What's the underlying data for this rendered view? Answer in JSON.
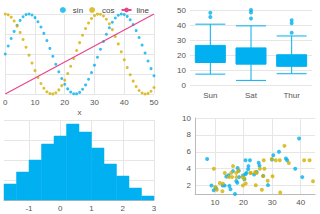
{
  "chart_data": [
    {
      "type": "line",
      "xlabel": "x",
      "legend": "upper right",
      "grid": true,
      "tick_labels": "x",
      "xlim": [
        0,
        50
      ],
      "xticks": [
        0,
        10,
        20,
        30,
        40,
        50
      ],
      "ylim": [
        -1,
        1
      ],
      "yticks": [
        -1,
        -0.5,
        0,
        0.5,
        1
      ],
      "x": [
        0,
        1,
        2,
        3,
        4,
        5,
        6,
        7,
        8,
        9,
        10,
        11,
        12,
        13,
        14,
        15,
        16,
        17,
        18,
        19,
        20,
        21,
        22,
        23,
        24,
        25,
        26,
        27,
        28,
        29,
        30,
        31,
        32,
        33,
        34,
        35,
        36,
        37,
        38,
        39,
        40,
        41,
        42,
        43,
        44,
        45,
        46,
        47,
        48,
        49,
        50
      ],
      "series": [
        {
          "name": "sin",
          "type": "scatter",
          "marker": "circle",
          "color": "#00b0f0",
          "values": [
            0,
            0.199,
            0.389,
            0.565,
            0.717,
            0.841,
            0.932,
            0.985,
            1.0,
            0.974,
            0.909,
            0.808,
            0.675,
            0.516,
            0.335,
            0.141,
            -0.058,
            -0.256,
            -0.443,
            -0.612,
            -0.757,
            -0.872,
            -0.952,
            -0.994,
            -0.996,
            -0.959,
            -0.883,
            -0.773,
            -0.631,
            -0.465,
            -0.279,
            -0.083,
            0.117,
            0.312,
            0.494,
            0.657,
            0.794,
            0.899,
            0.968,
            0.999,
            0.989,
            0.941,
            0.855,
            0.734,
            0.585,
            0.412,
            0.223,
            0.025,
            -0.174,
            -0.366,
            -0.544
          ]
        },
        {
          "name": "cos",
          "type": "scatter",
          "marker": "circle",
          "color": "#d4af00",
          "values": [
            1,
            0.98,
            0.921,
            0.825,
            0.697,
            0.54,
            0.362,
            0.17,
            -0.029,
            -0.227,
            -0.416,
            -0.589,
            -0.737,
            -0.857,
            -0.942,
            -0.99,
            -0.998,
            -0.967,
            -0.897,
            -0.791,
            -0.654,
            -0.49,
            -0.307,
            -0.112,
            0.087,
            0.284,
            0.469,
            0.635,
            0.776,
            0.886,
            0.96,
            0.997,
            0.994,
            0.951,
            0.869,
            0.754,
            0.609,
            0.439,
            0.252,
            0.054,
            -0.146,
            -0.339,
            -0.519,
            -0.678,
            -0.811,
            -0.911,
            -0.975,
            -0.999,
            -0.984,
            -0.93,
            -0.839
          ]
        },
        {
          "name": "line",
          "type": "line",
          "line_style": "solid",
          "color": "#e8458b",
          "x": [
            0,
            50
          ],
          "values": [
            -1,
            1
          ]
        }
      ]
    },
    {
      "type": "box",
      "grid": true,
      "color": "#00b0f0",
      "categories": [
        "Sun",
        "Sat",
        "Thur"
      ],
      "ylim": [
        0,
        50
      ],
      "yticks": [
        0,
        10,
        20,
        30,
        40,
        50
      ],
      "values": [
        [
          7.25,
          14.99,
          19.63,
          26.4,
          40.55
        ],
        [
          3.07,
          13.9,
          18.24,
          24.74,
          39.42
        ],
        [
          7.51,
          12.44,
          16.2,
          20.16,
          32.68
        ]
      ],
      "outliers": [
        [
          45.35,
          48.17
        ],
        [
          44.3,
          48.27,
          50
        ],
        [
          34.83,
          41.19,
          43.11
        ]
      ]
    },
    {
      "type": "histogram",
      "grid": true,
      "tick_labels": "x",
      "color": "#00b0f0",
      "bins": [
        -1.8,
        -1.4,
        -1.0,
        -0.6,
        -0.2,
        0.2,
        0.6,
        1.0,
        1.4,
        1.8,
        2.2,
        2.6,
        3.0
      ],
      "counts": [
        4,
        7,
        10,
        14,
        16,
        19,
        17,
        13,
        9,
        6,
        3,
        1
      ],
      "xlim": [
        -1.8,
        3
      ],
      "xticks": [
        -1,
        0,
        1,
        2,
        3
      ],
      "ylim": [
        0,
        20
      ],
      "yticks": [
        0,
        5,
        10,
        15,
        20
      ]
    },
    {
      "type": "scatter",
      "grid": true,
      "xlim": [
        3,
        45
      ],
      "xticks": [
        10,
        20,
        30,
        40
      ],
      "ylim": [
        1,
        10
      ],
      "yticks": [
        2,
        4,
        6,
        8,
        10
      ],
      "series": [
        {
          "color": "#00b0f0",
          "marker": "circle",
          "x": [
            16.99,
            10.34,
            21.01,
            23.68,
            24.59,
            25.29,
            8.77,
            26.88,
            15.04,
            14.78,
            10.27,
            35.26,
            15.42,
            18.43,
            21.58,
            16.29,
            17.46,
            13.94,
            9.55,
            20.65,
            17.92,
            20.29,
            39.42,
            19.82,
            17.81,
            13.37,
            12.69,
            21.7,
            30.4,
            18.29,
            22.23,
            32.4,
            28.55,
            40.55,
            20.69,
            34.81,
            25.56,
            7.25,
            38.07,
            29.93
          ],
          "values": [
            1.01,
            1.66,
            3.5,
            3.31,
            3.61,
            4.71,
            2,
            3.12,
            1.96,
            3.23,
            1.71,
            5,
            1.57,
            3,
            3.92,
            3.71,
            2.54,
            3.06,
            1.45,
            3.35,
            4.08,
            2.75,
            7.58,
            3.18,
            2.34,
            2,
            2,
            4.3,
            5.6,
            3.76,
            5,
            6,
            2.05,
            3,
            5,
            5.2,
            4.34,
            5.15,
            4,
            5.07
          ]
        },
        {
          "color": "#d4af00",
          "marker": "circle",
          "x": [
            19.65,
            20.76,
            24.06,
            12.6,
            11.69,
            19.77,
            29.85,
            32.83,
            44.3,
            22.42,
            27.05,
            16.32,
            14.83,
            26.41,
            35.83,
            18.24,
            12.76,
            30.14,
            15.98,
            25.71,
            31.27,
            26.86,
            24.52,
            10.07,
            34.3,
            17.51,
            28.44,
            20.27,
            13.42,
            43.11,
            10.65,
            15.69,
            22.49,
            9.6,
            24.27,
            41.19,
            32.68,
            17.47,
            27.28
          ],
          "values": [
            3,
            2.24,
            3.6,
            1.32,
            2.31,
            2,
            5.14,
            1.17,
            2.5,
            3.48,
            5,
            4.3,
            3.02,
            1.5,
            4.67,
            3.76,
            2.23,
            3.09,
            3,
            4,
            5,
            3.14,
            3.48,
            1.83,
            6.7,
            3,
            2.56,
            2.83,
            3.48,
            5,
            1.5,
            3.5,
            3.5,
            4,
            2.03,
            5,
            5,
            3.5,
            4
          ]
        }
      ]
    }
  ]
}
